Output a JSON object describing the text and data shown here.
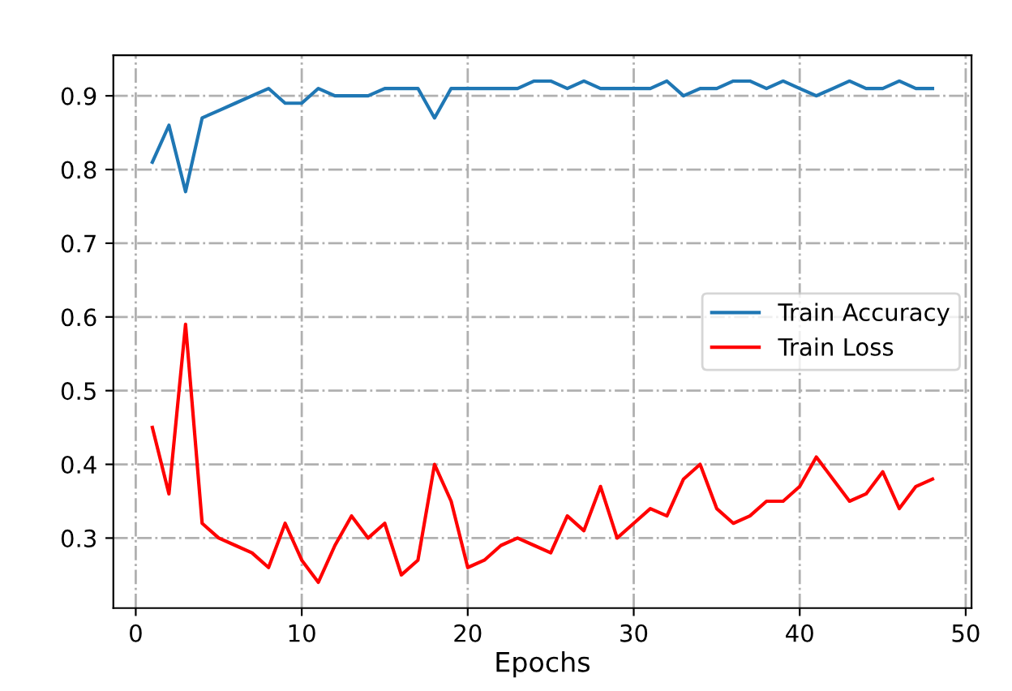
{
  "chart_data": {
    "type": "line",
    "xlabel": "Epochs",
    "x": [
      1,
      2,
      3,
      4,
      5,
      6,
      7,
      8,
      9,
      10,
      11,
      12,
      13,
      14,
      15,
      16,
      17,
      18,
      19,
      20,
      21,
      22,
      23,
      24,
      25,
      26,
      27,
      28,
      29,
      30,
      31,
      32,
      33,
      34,
      35,
      36,
      37,
      38,
      39,
      40,
      41,
      42,
      43,
      44,
      45,
      46,
      47,
      48
    ],
    "series": [
      {
        "name": "Train Accuracy",
        "color": "#1f77b4",
        "values": [
          0.81,
          0.86,
          0.77,
          0.87,
          0.88,
          0.89,
          0.9,
          0.91,
          0.89,
          0.89,
          0.91,
          0.9,
          0.9,
          0.9,
          0.91,
          0.91,
          0.91,
          0.87,
          0.91,
          0.91,
          0.91,
          0.91,
          0.91,
          0.92,
          0.92,
          0.91,
          0.92,
          0.91,
          0.91,
          0.91,
          0.91,
          0.92,
          0.9,
          0.91,
          0.91,
          0.92,
          0.92,
          0.91,
          0.92,
          0.91,
          0.9,
          0.91,
          0.92,
          0.91,
          0.91,
          0.92,
          0.91,
          0.91
        ]
      },
      {
        "name": "Train Loss",
        "color": "#ff0000",
        "values": [
          0.45,
          0.36,
          0.59,
          0.32,
          0.3,
          0.29,
          0.28,
          0.26,
          0.32,
          0.27,
          0.24,
          0.29,
          0.33,
          0.3,
          0.32,
          0.25,
          0.27,
          0.4,
          0.35,
          0.26,
          0.27,
          0.29,
          0.3,
          0.29,
          0.28,
          0.33,
          0.31,
          0.37,
          0.3,
          0.32,
          0.34,
          0.33,
          0.38,
          0.4,
          0.34,
          0.32,
          0.33,
          0.35,
          0.35,
          0.37,
          0.41,
          0.38,
          0.35,
          0.36,
          0.39,
          0.34,
          0.37,
          0.38
        ]
      }
    ],
    "xlim": [
      -1.35,
      50.35
    ],
    "xticks": [
      0,
      10,
      20,
      30,
      40,
      50
    ],
    "ylim": [
      0.205,
      0.955
    ],
    "yticks": [
      0.3,
      0.4,
      0.5,
      0.6,
      0.7,
      0.8,
      0.9
    ],
    "grid": true,
    "legend": "right",
    "line_style": "solid",
    "marker": "none"
  }
}
